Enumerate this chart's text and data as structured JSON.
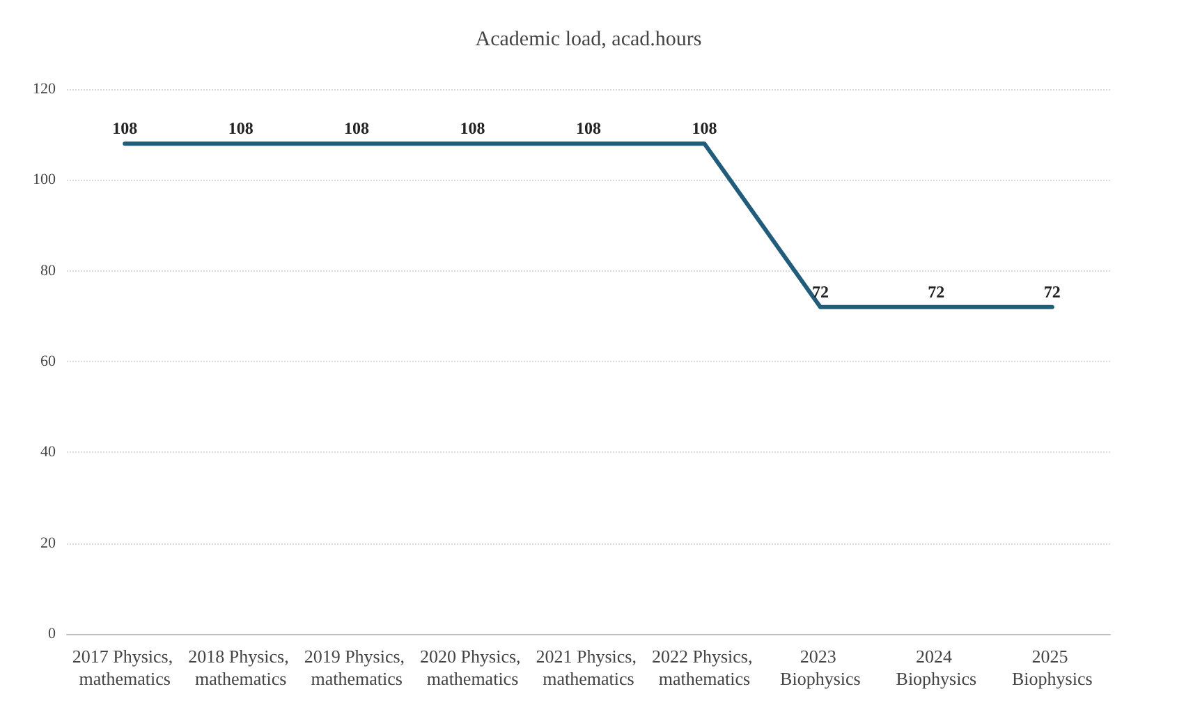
{
  "chart_data": {
    "type": "line",
    "title": "Academic load, acad.hours",
    "categories": [
      "2017 Physics, mathematics",
      "2018 Physics, mathematics",
      "2019 Physics, mathematics",
      "2020 Physics, mathematics",
      "2021 Physics, mathematics",
      "2022 Physics, mathematics",
      "2023 Biophysics",
      "2024 Biophysics",
      "2025 Biophysics"
    ],
    "series": [
      {
        "color": "#215d7b",
        "values": [
          108,
          108,
          108,
          108,
          108,
          108,
          72,
          72,
          72
        ]
      }
    ],
    "ylim": [
      0,
      120
    ],
    "yticks": [
      0,
      20,
      40,
      60,
      80,
      100,
      120
    ],
    "grid": "y",
    "data_labels": true,
    "marker": "none",
    "line_style": "solid"
  }
}
